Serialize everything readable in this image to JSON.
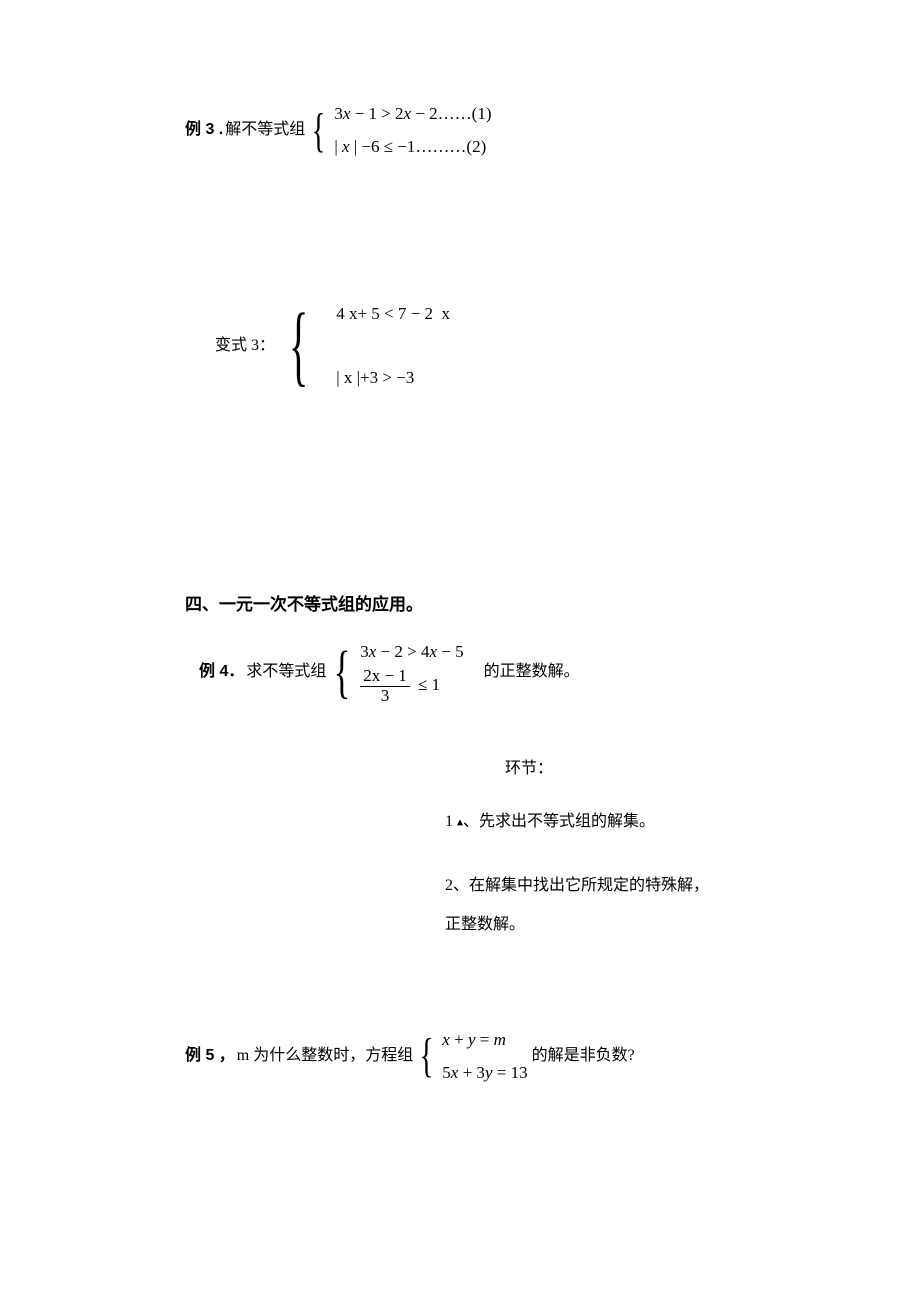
{
  "ex3": {
    "label": "例 3 .",
    "prefix": "解不等式组",
    "line1_html": "<span class='n'>3</span>x <span class='n'>− 1 &gt; 2</span>x <span class='n'>− 2……(1)</span>",
    "line2_html": "<span class='n'>|</span> x <span class='n'>| −6 ≤ −1………(2)</span>"
  },
  "var3": {
    "label": "变式 3：",
    "line1_html": "<span class='n'>4 x+ 5 &lt; 7 − 2&nbsp;&nbsp;x</span>",
    "line2_html": "<span class='n'>| x |+3 &gt; −3</span>"
  },
  "section4_title": "四、一元一次不等式组的应用。",
  "ex4": {
    "label": "例 4．",
    "prefix": "求不等式组",
    "line1_html": "<span class='n'>3</span>x <span class='n'>− 2 &gt; 4</span>x <span class='n'>− 5</span>",
    "line2_num_html": "<span class='n'>2</span>x <span class='n'>− 1</span>",
    "line2_den": "3",
    "line2_tail": "≤ 1",
    "suffix": "的正整数解。"
  },
  "steps": {
    "heading": "环节：",
    "s1": "1 、先求出不等式组的解集。",
    "s2": "2、在解集中找出它所规定的特殊解，",
    "s3": "正整数解。"
  },
  "ex5": {
    "label": "例 5 ，",
    "prefix": "m 为什么整数时，方程组",
    "line1_html": "x <span class='n'>+</span> y <span class='n'>=</span> m",
    "line2_html": "<span class='n'>5</span>x <span class='n'>+ 3</span>y <span class='n'>= 13</span>",
    "suffix": "的解是非负数?"
  }
}
